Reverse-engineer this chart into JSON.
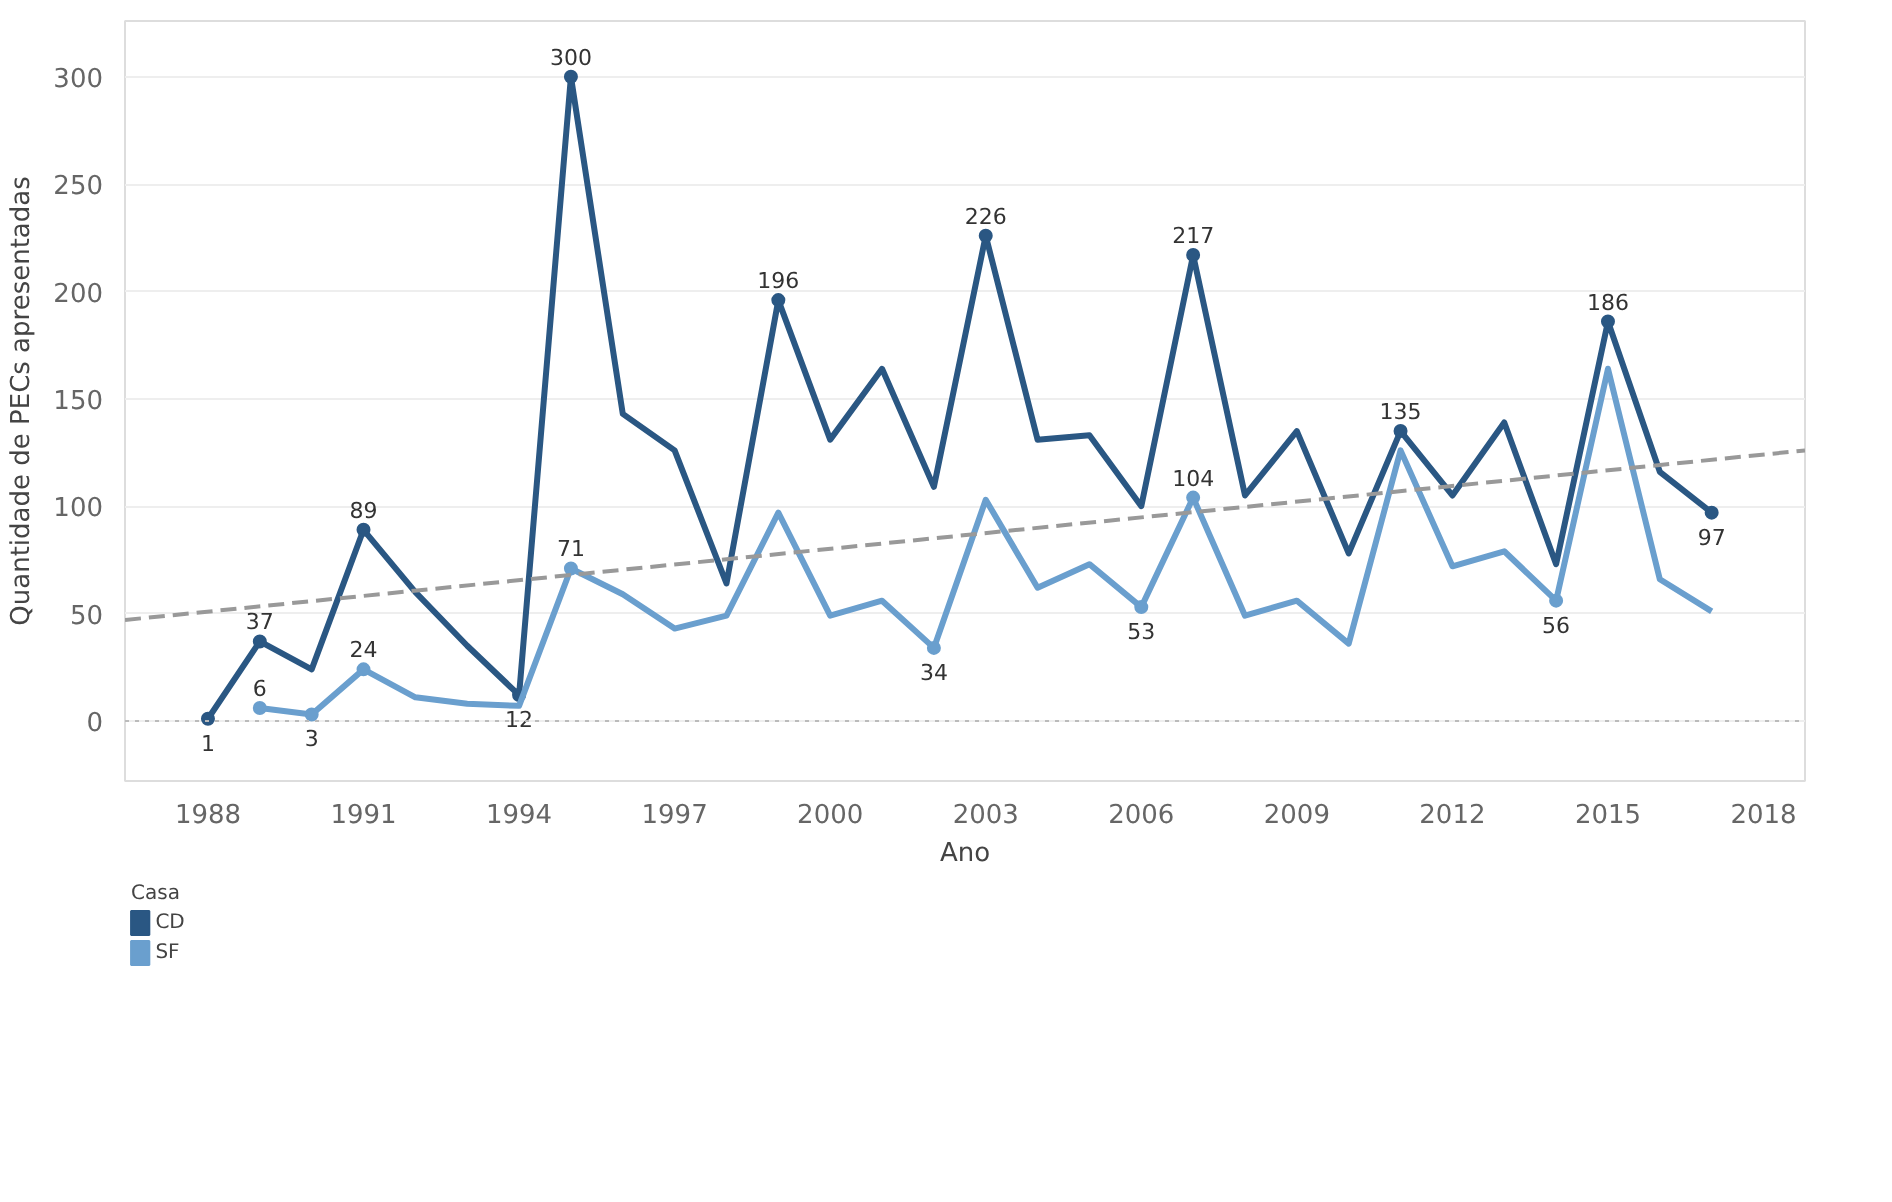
{
  "chart_data": {
    "type": "line",
    "xlabel": "Ano",
    "ylabel": "Quantidade de PECs apresentadas",
    "legend_title": "Casa",
    "legend": "bottom left",
    "grid": "y",
    "xlim": [
      1986.4,
      2018.8
    ],
    "xticks": [
      1988,
      1991,
      1994,
      1997,
      2000,
      2003,
      2006,
      2009,
      2012,
      2015,
      2018
    ],
    "ylim": [
      -28,
      326
    ],
    "yticks": [
      0,
      50,
      100,
      150,
      200,
      250,
      300
    ],
    "ref_lines": [
      {
        "axis": "y",
        "value": 0,
        "color": "#bbbbbb",
        "line_style": "dotted"
      }
    ],
    "series": [
      {
        "name": "CD",
        "color": "#2a5783",
        "x": [
          1988,
          1989,
          1990,
          1991,
          1992,
          1993,
          1994,
          1995,
          1996,
          1997,
          1998,
          1999,
          2000,
          2001,
          2002,
          2003,
          2004,
          2005,
          2006,
          2007,
          2008,
          2009,
          2010,
          2011,
          2012,
          2013,
          2014,
          2015,
          2016,
          2017
        ],
        "values": [
          1,
          37,
          24,
          89,
          60,
          35,
          12,
          300,
          143,
          126,
          64,
          196,
          131,
          164,
          109,
          226,
          131,
          133,
          100,
          217,
          105,
          135,
          78,
          135,
          105,
          139,
          73,
          186,
          116,
          97
        ],
        "value_labels": [
          "1",
          "37",
          null,
          "89",
          null,
          null,
          "12",
          "300",
          null,
          null,
          null,
          "196",
          null,
          null,
          null,
          "226",
          null,
          null,
          null,
          "217",
          null,
          null,
          null,
          "135",
          null,
          null,
          null,
          "186",
          null,
          "97"
        ]
      },
      {
        "name": "SF",
        "color": "#6a9fce",
        "x": [
          1989,
          1990,
          1991,
          1992,
          1993,
          1994,
          1995,
          1996,
          1997,
          1998,
          1999,
          2000,
          2001,
          2002,
          2003,
          2004,
          2005,
          2006,
          2007,
          2008,
          2009,
          2010,
          2011,
          2012,
          2013,
          2014,
          2015,
          2016,
          2017
        ],
        "values": [
          6,
          3,
          24,
          11,
          8,
          7,
          71,
          59,
          43,
          49,
          97,
          49,
          56,
          34,
          103,
          62,
          73,
          53,
          104,
          49,
          56,
          36,
          126,
          72,
          79,
          56,
          164,
          66,
          51
        ],
        "value_labels": [
          "6",
          "3",
          "24",
          null,
          null,
          null,
          "71",
          null,
          null,
          null,
          null,
          null,
          null,
          "34",
          null,
          null,
          null,
          "53",
          "104",
          null,
          null,
          null,
          null,
          null,
          null,
          "56",
          null,
          null,
          null
        ]
      },
      {
        "type": "line",
        "color": "#999999",
        "line_style": "dashed",
        "x": [
          1986.4,
          2018.8
        ],
        "values": [
          47,
          126
        ]
      }
    ]
  }
}
